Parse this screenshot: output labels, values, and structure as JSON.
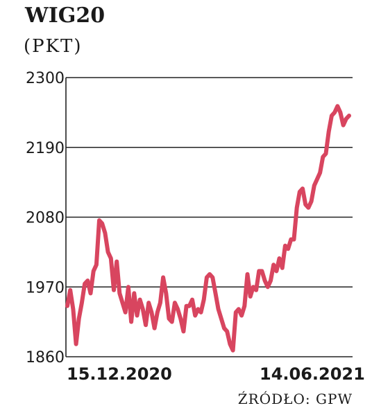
{
  "chart_data": {
    "type": "line",
    "title": "WIG20",
    "unit": "(PKT)",
    "source": "ŹRÓDŁO: GPW",
    "ylim": [
      1860,
      2300
    ],
    "yticks": [
      1860,
      1970,
      2080,
      2190,
      2300
    ],
    "xlabels": [
      "15.12.2020",
      "14.06.2021"
    ],
    "grid": true,
    "color": "#d8455f",
    "series": [
      {
        "values": [
          1940,
          1965,
          1935,
          1880,
          1920,
          1945,
          1975,
          1980,
          1960,
          1995,
          2005,
          2075,
          2070,
          2055,
          2025,
          2015,
          1965,
          2010,
          1960,
          1945,
          1930,
          1970,
          1915,
          1960,
          1925,
          1950,
          1935,
          1910,
          1945,
          1930,
          1905,
          1930,
          1945,
          1985,
          1960,
          1920,
          1915,
          1945,
          1935,
          1920,
          1900,
          1940,
          1940,
          1950,
          1925,
          1935,
          1930,
          1950,
          1985,
          1990,
          1985,
          1960,
          1935,
          1920,
          1905,
          1900,
          1880,
          1870,
          1930,
          1935,
          1925,
          1940,
          1990,
          1955,
          1970,
          1965,
          1995,
          1995,
          1980,
          1970,
          1980,
          2005,
          1995,
          2015,
          2000,
          2035,
          2030,
          2045,
          2045,
          2095,
          2120,
          2125,
          2100,
          2095,
          2105,
          2130,
          2140,
          2150,
          2175,
          2180,
          2215,
          2240,
          2245,
          2255,
          2245,
          2225,
          2235,
          2240
        ]
      }
    ]
  }
}
